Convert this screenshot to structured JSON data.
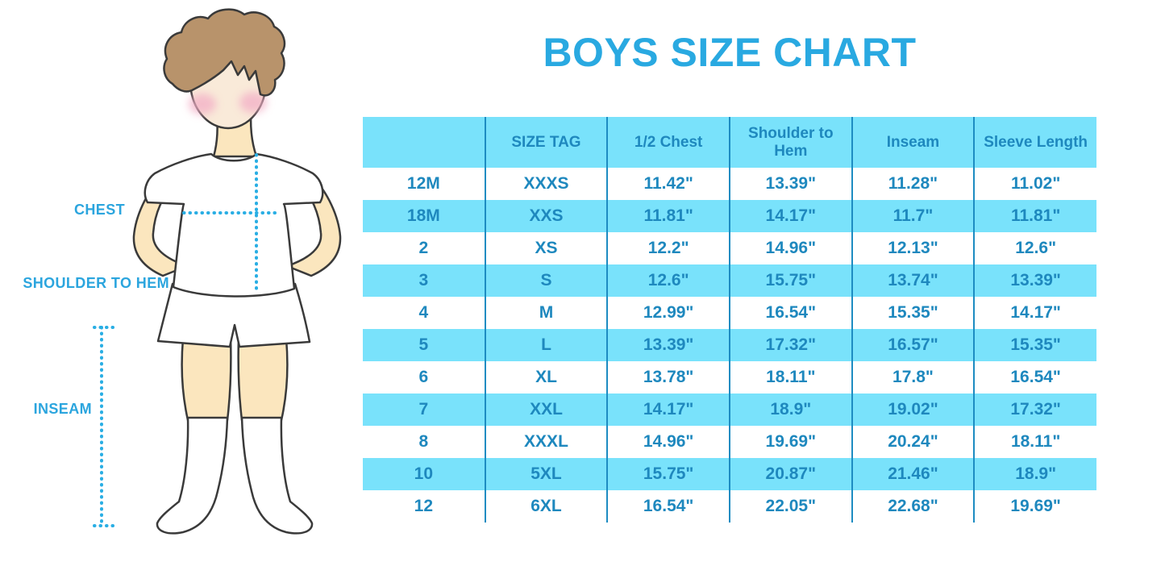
{
  "title": "BOYS SIZE CHART",
  "figure_labels": {
    "chest": "CHEST",
    "shoulder_to_hem": "SHOULDER TO HEM",
    "inseam": "INSEAM"
  },
  "chart_data": {
    "type": "table",
    "title": "BOYS SIZE CHART",
    "columns": [
      "",
      "SIZE TAG",
      "1/2 Chest",
      "Shoulder to Hem",
      "Inseam",
      "Sleeve Length"
    ],
    "rows": [
      [
        "12M",
        "XXXS",
        "11.42\"",
        "13.39\"",
        "11.28\"",
        "11.02\""
      ],
      [
        "18M",
        "XXS",
        "11.81\"",
        "14.17\"",
        "11.7\"",
        "11.81\""
      ],
      [
        "2",
        "XS",
        "12.2\"",
        "14.96\"",
        "12.13\"",
        "12.6\""
      ],
      [
        "3",
        "S",
        "12.6\"",
        "15.75\"",
        "13.74\"",
        "13.39\""
      ],
      [
        "4",
        "M",
        "12.99\"",
        "16.54\"",
        "15.35\"",
        "14.17\""
      ],
      [
        "5",
        "L",
        "13.39\"",
        "17.32\"",
        "16.57\"",
        "15.35\""
      ],
      [
        "6",
        "XL",
        "13.78\"",
        "18.11\"",
        "17.8\"",
        "16.54\""
      ],
      [
        "7",
        "XXL",
        "14.17\"",
        "18.9\"",
        "19.02\"",
        "17.32\""
      ],
      [
        "8",
        "XXXL",
        "14.96\"",
        "19.69\"",
        "20.24\"",
        "18.11\""
      ],
      [
        "10",
        "5XL",
        "15.75\"",
        "20.87\"",
        "21.46\"",
        "18.9\""
      ],
      [
        "12",
        "6XL",
        "16.54\"",
        "22.05\"",
        "22.68\"",
        "19.69\""
      ]
    ],
    "layout": {
      "units": "inches",
      "grid": "vertical-dividers-only",
      "header_background": "#79E2FB",
      "row_colors_alternating": [
        "#FFFFFF",
        "#79E2FB"
      ],
      "column_divider_color": "#1D8CC2",
      "text_color": "#1E88BE"
    }
  },
  "colors": {
    "title_blue": "#29A9E1",
    "label_blue": "#2BA5DE",
    "dotted_line_blue": "#29AEE4",
    "table_cyan": "#79E2FB",
    "table_text_blue": "#1E88BE",
    "table_divider_blue": "#1D8CC2",
    "skin": "#FBE6BE",
    "face": "#F9EAD9",
    "hair_brown": "#B8936B",
    "cheek_pink": "#F3AFC6",
    "outline": "#3A3A3A"
  }
}
